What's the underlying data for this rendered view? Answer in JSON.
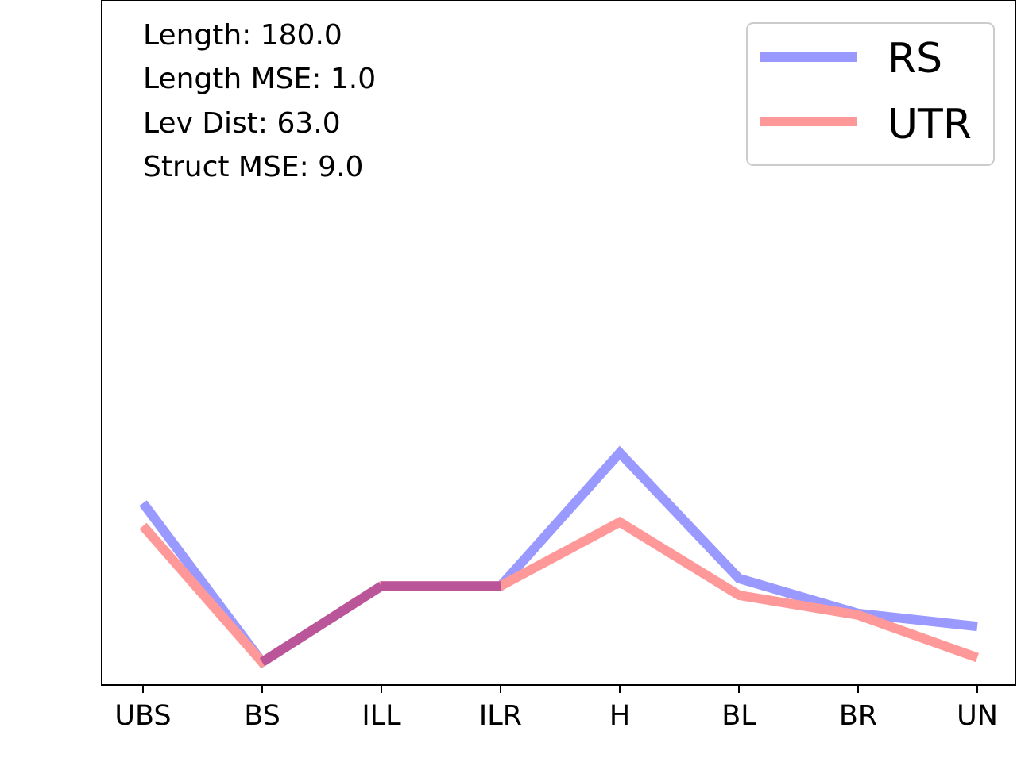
{
  "chart_data": {
    "type": "line",
    "categories": [
      "UBS",
      "BS",
      "ILL",
      "ILR",
      "H",
      "BL",
      "BR",
      "UN"
    ],
    "series": [
      {
        "name": "RS",
        "color": "#9999ff",
        "values": [
          0.239,
          0.03,
          0.13,
          0.13,
          0.305,
          0.14,
          0.094,
          0.077
        ]
      },
      {
        "name": "UTR",
        "color": "#ff9999",
        "values": [
          0.209,
          0.03,
          0.13,
          0.13,
          0.214,
          0.118,
          0.092,
          0.036
        ]
      }
    ],
    "overlap_color": "#bb5599",
    "ylim": [
      0,
      0.9
    ],
    "y_ticks_visible": false,
    "grid": false,
    "legend": {
      "position": "top-right"
    },
    "annotations": [
      "Length: 180.0",
      "Length MSE: 1.0",
      "Lev Dist: 63.0",
      "Struct MSE: 9.0"
    ]
  }
}
